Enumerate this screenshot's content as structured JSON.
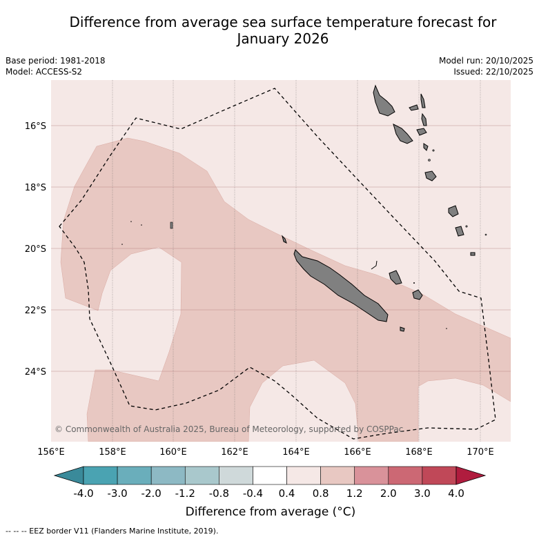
{
  "title_line1": "Difference from average sea surface temperature forecast for",
  "title_line2": "January 2026",
  "base_period": "Base period: 1981-2018",
  "model": "Model: ACCESS-S2",
  "model_run": "Model run: 20/10/2025",
  "issued": "Issued: 22/10/2025",
  "copyright": "© Commonwealth of Australia 2025, Bureau of Meteorology, supported by COSPPac",
  "lat_labels": [
    "16°S",
    "18°S",
    "20°S",
    "22°S",
    "24°S"
  ],
  "lon_labels": [
    "156°E",
    "158°E",
    "160°E",
    "162°E",
    "164°E",
    "166°E",
    "168°E",
    "170°E"
  ],
  "colorbar": {
    "ticks": [
      "-4.0",
      "-3.0",
      "-2.0",
      "-1.2",
      "-0.8",
      "-0.4",
      "0.4",
      "0.8",
      "1.2",
      "2.0",
      "3.0",
      "4.0"
    ],
    "colors": [
      "#3a8a9a",
      "#4aa3b2",
      "#6aaebb",
      "#8db9c4",
      "#a9c8cc",
      "#cfd9da",
      "#ffffff",
      "#f5e8e6",
      "#e8c8c2",
      "#d9929a",
      "#cc6874",
      "#c04858",
      "#b01c3e"
    ],
    "label": "Difference from average (°C)"
  },
  "footer": "--  --  -- EEZ border V11 (Flanders Marine Institute, 2019).",
  "colors": {
    "light_warm": "#f5e8e6",
    "warm": "#e8c8c2",
    "land": "#808080"
  }
}
